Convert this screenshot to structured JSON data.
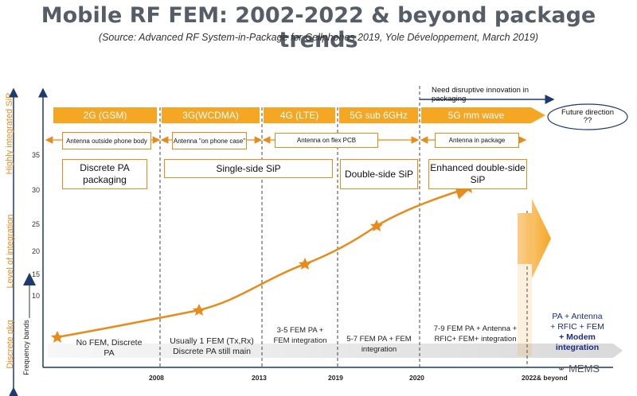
{
  "header": {
    "title": "Mobile RF FEM: 2002-2022 & beyond package trends",
    "subtitle": "(Source: Advanced RF System-in-Package for Cellphones 2019, Yole Développement, March 2019)"
  },
  "axis": {
    "y_label_top": "Highly integrated SiP",
    "y_label_mid": "Level of integration",
    "y_label_bottom": "Discrete pkg",
    "freq_label": "Frequency bands",
    "ticks": [
      "35",
      "30",
      "25",
      "20",
      "15",
      "10"
    ],
    "years": [
      "2008",
      "2013",
      "2019",
      "2020",
      "2022& beyond"
    ]
  },
  "eras": [
    "2G (GSM)",
    "3G(WCDMA)",
    "4G (LTE)",
    "5G sub 6GHz",
    "5G mm wave"
  ],
  "innovation_note": "Need disruptive innovation in packaging",
  "future": "Future direction ??",
  "antenna": [
    "Antenna outside phone body",
    "Antenna \"on phone case\"",
    "Antenna on flex PCB",
    "Antenna in package"
  ],
  "packaging": [
    "Discrete PA packaging",
    "Single-side SiP",
    "Double-side SiP",
    "Enhanced double-side SiP"
  ],
  "fem": [
    "No FEM, Discrete PA",
    "Usually 1 FEM (Tx,Rx) Discrete PA still main",
    "3-5 FEM PA + FEM integration",
    "5-7 FEM PA + FEM integration",
    "7-9 FEM PA + Antenna + RFIC+ FEM+ integration"
  ],
  "future_integration": {
    "line1": "PA + Antenna",
    "line2": "+ RFIC + FEM",
    "line3": "+ Modem",
    "line4": "integration"
  },
  "watermark": "MEMS",
  "colors": {
    "orange": "#f5a623",
    "dark_orange": "#e88b1a",
    "navy": "#1f3a6e",
    "blue_text": "#1a2d7a"
  }
}
